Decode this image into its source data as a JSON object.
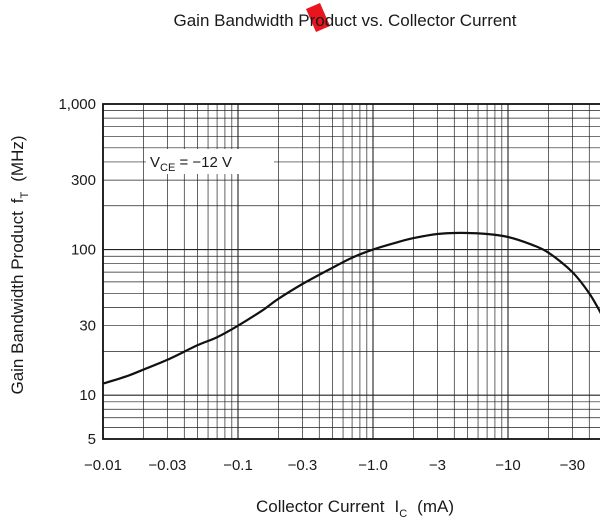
{
  "chart_data": {
    "type": "line",
    "title": "Gain Bandwidth Product vs. Collector Current",
    "xlabel": "Collector Current",
    "xlabel_symbol": "I",
    "xlabel_symbol_sub": "C",
    "xlabel_unit": "(mA)",
    "ylabel": "Gain Bandwidth Product",
    "ylabel_symbol": "f",
    "ylabel_symbol_sub": "T",
    "ylabel_unit": "(MHz)",
    "x_scale": "log",
    "y_scale": "log",
    "x_quantity_shown": "-I_C (magnitude, mA)",
    "xlim": [
      0.01,
      50
    ],
    "ylim": [
      5,
      1000
    ],
    "grid": true,
    "x_ticks": [
      {
        "value": 0.01,
        "label": "−0.01"
      },
      {
        "value": 0.03,
        "label": "−0.03"
      },
      {
        "value": 0.1,
        "label": "−0.1"
      },
      {
        "value": 0.3,
        "label": "−0.3"
      },
      {
        "value": 1,
        "label": "−1.0"
      },
      {
        "value": 3,
        "label": "−3"
      },
      {
        "value": 10,
        "label": "−10"
      },
      {
        "value": 30,
        "label": "−30"
      }
    ],
    "y_ticks": [
      {
        "value": 1000,
        "label": "1,000"
      },
      {
        "value": 300,
        "label": "300"
      },
      {
        "value": 100,
        "label": "100"
      },
      {
        "value": 30,
        "label": "30"
      },
      {
        "value": 10,
        "label": "10"
      },
      {
        "value": 5,
        "label": "5"
      }
    ],
    "annotation": {
      "symbol": "V",
      "sub": "CE",
      "text": " = −12 V"
    },
    "series": [
      {
        "x": [
          -0.01,
          -0.015,
          -0.02,
          -0.03,
          -0.05,
          -0.07,
          -0.1,
          -0.15,
          -0.2,
          -0.3,
          -0.5,
          -0.7,
          -1.0,
          -1.5,
          -2,
          -3,
          -4,
          -5,
          -7,
          -10,
          -15,
          -20,
          -30,
          -40,
          -50
        ],
        "y": [
          12,
          13.5,
          15,
          17.5,
          22,
          25,
          30,
          38,
          46,
          58,
          75,
          88,
          100,
          112,
          120,
          128,
          130,
          130,
          128,
          122,
          108,
          95,
          70,
          50,
          35
        ]
      }
    ]
  }
}
